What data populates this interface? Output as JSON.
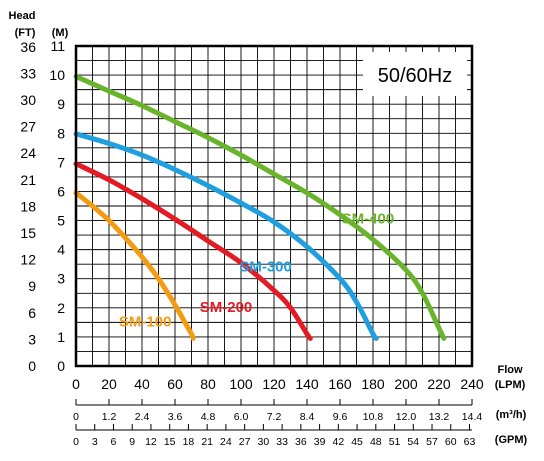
{
  "chart_data": {
    "type": "line",
    "frequency_label": "50/60Hz",
    "y_axis": {
      "title": "Head",
      "ft_unit": "(FT)",
      "m_unit": "(M)",
      "ft_ticks": [
        "0",
        "3",
        "6",
        "9",
        "12",
        "15",
        "18",
        "21",
        "24",
        "27",
        "30",
        "33",
        "36"
      ],
      "m_ticks": [
        "0",
        "1",
        "2",
        "3",
        "4",
        "5",
        "6",
        "7",
        "8",
        "9",
        "10",
        "11"
      ],
      "ylim": [
        0,
        11
      ]
    },
    "x_axis": {
      "title": "Flow",
      "lpm_unit": "(LPM)",
      "m3h_unit": "(m³/h)",
      "gpm_unit": "(GPM)",
      "lpm_ticks": [
        "0",
        "20",
        "40",
        "60",
        "80",
        "100",
        "120",
        "140",
        "160",
        "180",
        "200",
        "220",
        "240"
      ],
      "m3h_ticks": [
        "0",
        "1.2",
        "2.4",
        "3.6",
        "4.8",
        "6.0",
        "7.2",
        "8.4",
        "9.6",
        "10.8",
        "12.0",
        "13.2",
        "14.4"
      ],
      "gpm_ticks": [
        "0",
        "3",
        "6",
        "9",
        "12",
        "15",
        "18",
        "21",
        "24",
        "27",
        "30",
        "33",
        "36",
        "39",
        "42",
        "45",
        "48",
        "51",
        "54",
        "57",
        "60",
        "63"
      ],
      "xlim": [
        0,
        240
      ]
    },
    "grid": true,
    "series": [
      {
        "name": "SM-100",
        "color": "#f39c11",
        "label_at": [
          26,
          1.35
        ],
        "points": [
          [
            0,
            5.95
          ],
          [
            10,
            5.5
          ],
          [
            20,
            5.0
          ],
          [
            30,
            4.4
          ],
          [
            40,
            3.75
          ],
          [
            50,
            3.0
          ],
          [
            60,
            2.1
          ],
          [
            65,
            1.6
          ],
          [
            70,
            1.1
          ],
          [
            71,
            0.95
          ]
        ]
      },
      {
        "name": "SM-200",
        "color": "#e41b24",
        "label_at": [
          75,
          1.85
        ],
        "points": [
          [
            0,
            6.95
          ],
          [
            20,
            6.4
          ],
          [
            40,
            5.75
          ],
          [
            60,
            5.05
          ],
          [
            80,
            4.3
          ],
          [
            100,
            3.55
          ],
          [
            120,
            2.6
          ],
          [
            130,
            2.0
          ],
          [
            140,
            1.1
          ],
          [
            142,
            0.95
          ]
        ]
      },
      {
        "name": "SM-300",
        "color": "#1f9ee0",
        "label_at": [
          99,
          3.25
        ],
        "points": [
          [
            0,
            7.98
          ],
          [
            20,
            7.65
          ],
          [
            40,
            7.25
          ],
          [
            60,
            6.75
          ],
          [
            80,
            6.2
          ],
          [
            100,
            5.6
          ],
          [
            120,
            4.95
          ],
          [
            140,
            4.1
          ],
          [
            160,
            3.0
          ],
          [
            170,
            2.2
          ],
          [
            180,
            1.1
          ],
          [
            182,
            0.95
          ]
        ]
      },
      {
        "name": "SM-400",
        "color": "#6ab42c",
        "label_at": [
          161,
          4.9
        ],
        "points": [
          [
            0,
            9.95
          ],
          [
            20,
            9.45
          ],
          [
            40,
            8.95
          ],
          [
            60,
            8.4
          ],
          [
            80,
            7.85
          ],
          [
            100,
            7.25
          ],
          [
            120,
            6.6
          ],
          [
            140,
            5.95
          ],
          [
            160,
            5.2
          ],
          [
            180,
            4.35
          ],
          [
            200,
            3.3
          ],
          [
            210,
            2.5
          ],
          [
            220,
            1.3
          ],
          [
            223,
            0.95
          ]
        ]
      }
    ]
  }
}
